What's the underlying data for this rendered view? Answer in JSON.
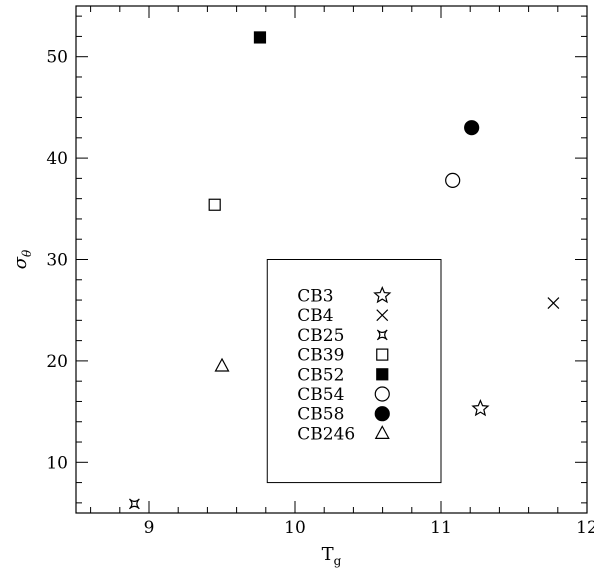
{
  "chart_data": {
    "type": "scatter",
    "title": "",
    "xlabel": "T",
    "xlabel_sub": "g",
    "ylabel": "σ",
    "ylabel_sub": "θ",
    "xlim": [
      8.5,
      12.0
    ],
    "ylim": [
      5,
      55
    ],
    "xticks_major": [
      9,
      10,
      11,
      12
    ],
    "yticks_major": [
      10,
      20,
      30,
      40,
      50
    ],
    "xtick_labels": [
      "9",
      "10",
      "11",
      "12"
    ],
    "ytick_labels": [
      "10",
      "20",
      "30",
      "40",
      "50"
    ],
    "grid": false,
    "legend_placement": "center-bottom",
    "series": [
      {
        "name": "CB3",
        "marker": "star-open",
        "x": [
          11.27
        ],
        "y": [
          15.3
        ]
      },
      {
        "name": "CB4",
        "marker": "cross",
        "x": [
          11.77
        ],
        "y": [
          25.7
        ]
      },
      {
        "name": "CB25",
        "marker": "concave-star-open",
        "x": [
          8.9
        ],
        "y": [
          5.9
        ]
      },
      {
        "name": "CB39",
        "marker": "square-open",
        "x": [
          9.45
        ],
        "y": [
          35.4
        ]
      },
      {
        "name": "CB52",
        "marker": "square-filled",
        "x": [
          9.76
        ],
        "y": [
          51.9
        ]
      },
      {
        "name": "CB54",
        "marker": "circle-open",
        "x": [
          11.08
        ],
        "y": [
          37.8
        ]
      },
      {
        "name": "CB58",
        "marker": "circle-filled",
        "x": [
          11.21
        ],
        "y": [
          43.0
        ]
      },
      {
        "name": "CB246",
        "marker": "triangle-open",
        "x": [
          9.5
        ],
        "y": [
          19.5
        ]
      }
    ]
  }
}
